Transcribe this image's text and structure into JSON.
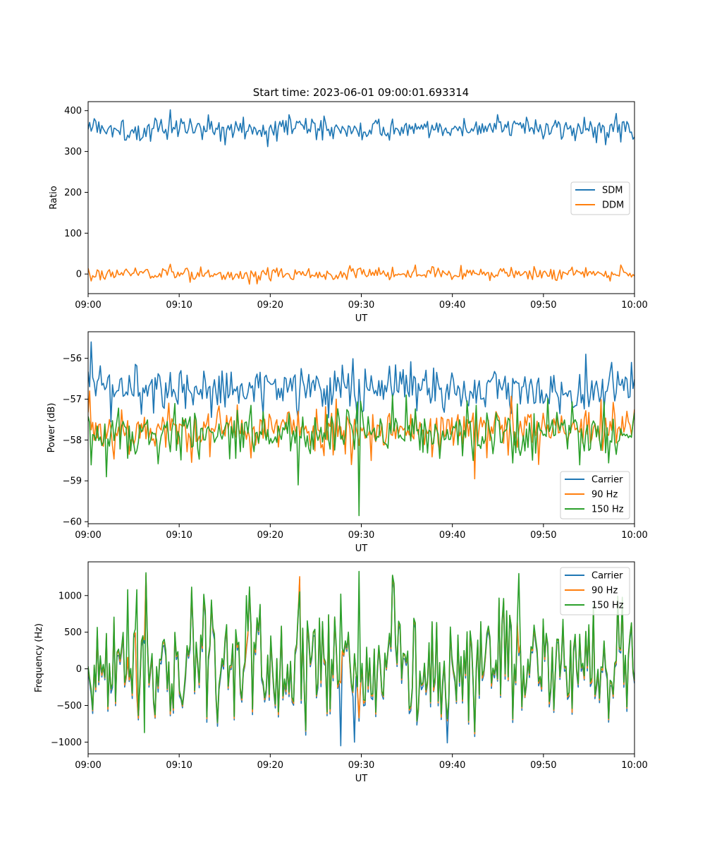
{
  "figure": {
    "title": "Start time: 2023-06-01 09:00:01.693314",
    "xlabel": "UT",
    "x_tick_labels": [
      "09:00",
      "09:10",
      "09:20",
      "09:30",
      "09:40",
      "09:50",
      "10:00"
    ]
  },
  "chart_data": [
    {
      "type": "line",
      "title": "Start time: 2023-06-01 09:00:01.693314",
      "xlabel": "UT",
      "ylabel": "Ratio",
      "xlim": [
        "09:00",
        "10:00"
      ],
      "ylim": [
        -48,
        422
      ],
      "yticks": [
        0,
        100,
        200,
        300,
        400
      ],
      "legend": "center-right",
      "grid": false,
      "series": [
        {
          "name": "SDM",
          "color": "#1f77b4",
          "mean": 357,
          "spread": 14,
          "spikes": [
            [
              9,
              402
            ],
            [
              4,
              328
            ],
            [
              52,
              330
            ],
            [
              58,
              393
            ],
            [
              17,
              384
            ],
            [
              22,
              390
            ]
          ]
        },
        {
          "name": "DDM",
          "color": "#ff7f0e",
          "mean": 0,
          "spread": 8,
          "spikes": [
            [
              18.5,
              -24
            ],
            [
              9,
              24
            ],
            [
              58.5,
              22
            ],
            [
              0,
              14
            ],
            [
              41,
              21
            ],
            [
              36,
              22
            ]
          ]
        }
      ]
    },
    {
      "type": "line",
      "title": "",
      "xlabel": "UT",
      "ylabel": "Power (dB)",
      "xlim": [
        "09:00",
        "10:00"
      ],
      "ylim": [
        -60.05,
        -55.35
      ],
      "yticks": [
        -60,
        -59,
        -58,
        -57,
        -56
      ],
      "legend": "lower-right",
      "grid": false,
      "series": [
        {
          "name": "Carrier",
          "color": "#1f77b4",
          "mean": -56.75,
          "spread": 0.3,
          "spikes": [
            [
              0.3,
              -55.6
            ],
            [
              23,
              -57.5
            ],
            [
              29.5,
              -57.6
            ],
            [
              57.5,
              -56.1
            ],
            [
              54.6,
              -55.9
            ],
            [
              59.7,
              -56.1
            ]
          ]
        },
        {
          "name": "90 Hz",
          "color": "#ff7f0e",
          "mean": -57.75,
          "spread": 0.3,
          "spikes": [
            [
              0.2,
              -56.8
            ],
            [
              42.5,
              -58.95
            ],
            [
              49.4,
              -58.6
            ],
            [
              23,
              -57.3
            ]
          ]
        },
        {
          "name": "150 Hz",
          "color": "#2ca02c",
          "mean": -57.85,
          "spread": 0.3,
          "spikes": [
            [
              29.8,
              -59.85
            ],
            [
              23,
              -59.1
            ],
            [
              2,
              -58.9
            ],
            [
              33.5,
              -56.9
            ],
            [
              35,
              -56.9
            ]
          ]
        }
      ]
    },
    {
      "type": "line",
      "title": "",
      "xlabel": "UT",
      "ylabel": "Frequency (Hz)",
      "xlim": [
        "09:00",
        "10:00"
      ],
      "ylim": [
        -1160,
        1460
      ],
      "yticks": [
        -1000,
        -500,
        0,
        500,
        1000
      ],
      "legend": "upper-right",
      "grid": false,
      "series": [
        {
          "name": "Carrier",
          "color": "#1f77b4",
          "offset": -60,
          "spikes": [
            [
              27.7,
              -1050
            ],
            [
              39.5,
              -1010
            ],
            [
              29.2,
              -1000
            ]
          ]
        },
        {
          "name": "90 Hz",
          "color": "#ff7f0e",
          "offset": -25,
          "spikes": []
        },
        {
          "name": "150 Hz",
          "color": "#2ca02c",
          "offset": 0,
          "mean": 80,
          "spread": 420,
          "spikes": [
            [
              29.8,
              1330
            ],
            [
              47.3,
              1300
            ],
            [
              4.3,
              1080
            ],
            [
              5.3,
              1080
            ],
            [
              23.3,
              1050
            ],
            [
              27.8,
              1020
            ],
            [
              17.3,
              1000
            ],
            [
              6.2,
              -870
            ]
          ]
        }
      ]
    }
  ]
}
